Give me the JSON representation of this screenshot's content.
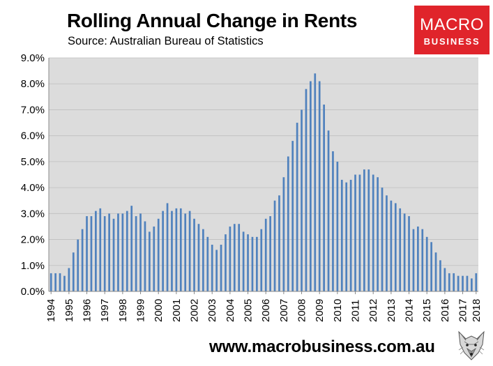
{
  "header": {
    "title": "Rolling Annual Change in Rents",
    "subtitle": "Source: Australian Bureau of Statistics"
  },
  "logo": {
    "line1": "MACRO",
    "line2": "BUSINESS"
  },
  "footer": {
    "url": "www.macrobusiness.com.au"
  },
  "colors": {
    "bar": "#4f81bd",
    "plot_bg": "#dcdcdc",
    "grid": "#bfbfbf",
    "logo_bg": "#e0242b"
  },
  "chart_data": {
    "type": "bar",
    "title": "Rolling Annual Change in Rents",
    "subtitle": "Source: Australian Bureau of Statistics",
    "xlabel": "",
    "ylabel": "",
    "ylim": [
      0,
      9
    ],
    "yticks": [
      "0.0%",
      "1.0%",
      "2.0%",
      "3.0%",
      "4.0%",
      "5.0%",
      "6.0%",
      "7.0%",
      "8.0%",
      "9.0%"
    ],
    "xticks": [
      "1994",
      "1995",
      "1996",
      "1997",
      "1998",
      "1999",
      "2000",
      "2001",
      "2002",
      "2003",
      "2004",
      "2005",
      "2006",
      "2007",
      "2008",
      "2009",
      "2010",
      "2011",
      "2012",
      "2013",
      "2014",
      "2015",
      "2016",
      "2017",
      "2018"
    ],
    "grid": "horizontal",
    "series": [
      {
        "name": "Rolling Annual Change in Rents (%)",
        "start": "1994-Q1",
        "frequency": "quarterly",
        "values": [
          0.7,
          0.7,
          0.7,
          0.6,
          0.9,
          1.5,
          2.0,
          2.4,
          2.9,
          2.9,
          3.1,
          3.2,
          2.9,
          3.0,
          2.8,
          3.0,
          3.0,
          3.1,
          3.3,
          2.9,
          3.0,
          2.7,
          2.3,
          2.5,
          2.8,
          3.1,
          3.4,
          3.1,
          3.2,
          3.2,
          3.0,
          3.1,
          2.8,
          2.6,
          2.4,
          2.1,
          1.8,
          1.6,
          1.8,
          2.2,
          2.5,
          2.6,
          2.6,
          2.3,
          2.2,
          2.1,
          2.1,
          2.4,
          2.8,
          2.9,
          3.5,
          3.7,
          4.4,
          5.2,
          5.8,
          6.5,
          7.0,
          7.8,
          8.1,
          8.4,
          8.1,
          7.2,
          6.2,
          5.4,
          5.0,
          4.3,
          4.2,
          4.3,
          4.5,
          4.5,
          4.7,
          4.7,
          4.5,
          4.4,
          4.0,
          3.7,
          3.5,
          3.4,
          3.2,
          3.0,
          2.9,
          2.4,
          2.5,
          2.4,
          2.1,
          1.9,
          1.5,
          1.2,
          0.9,
          0.7,
          0.7,
          0.6,
          0.6,
          0.6,
          0.5,
          0.7
        ]
      }
    ]
  }
}
